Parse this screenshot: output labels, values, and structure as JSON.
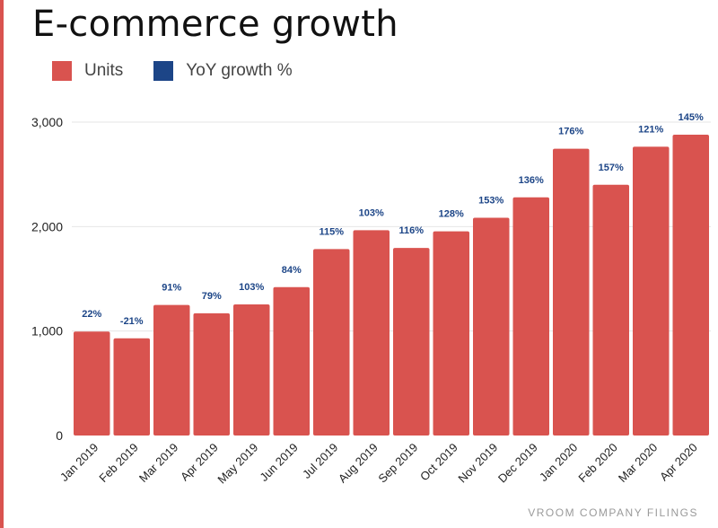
{
  "title": "E-commerce growth",
  "footer": "VROOM COMPANY FILINGS",
  "colors": {
    "units": "#d9534f",
    "growth": "#1c4587",
    "accent": "#d9534f"
  },
  "legend": [
    {
      "label": "Units",
      "color": "#d9534f"
    },
    {
      "label": "YoY growth %",
      "color": "#1c4587"
    }
  ],
  "chart_data": {
    "type": "bar",
    "title": "E-commerce growth",
    "categories": [
      "Jan 2019",
      "Feb 2019",
      "Mar 2019",
      "Apr 2019",
      "May 2019",
      "Jun 2019",
      "Jul 2019",
      "Aug 2019",
      "Sep 2019",
      "Oct 2019",
      "Nov 2019",
      "Dec 2019",
      "Jan 2020",
      "Feb 2020",
      "Mar 2020",
      "Apr 2020"
    ],
    "series": [
      {
        "name": "Units",
        "values": [
          995,
          930,
          1250,
          1170,
          1255,
          1420,
          1785,
          1965,
          1795,
          1955,
          2085,
          2280,
          2745,
          2400,
          2765,
          2880
        ]
      },
      {
        "name": "YoY growth %",
        "labels": [
          "22%",
          "-21%",
          "91%",
          "79%",
          "103%",
          "84%",
          "115%",
          "103%",
          "116%",
          "128%",
          "153%",
          "136%",
          "176%",
          "157%",
          "121%",
          "145%"
        ]
      }
    ],
    "yticks": [
      {
        "value": 0,
        "label": "0"
      },
      {
        "value": 1000,
        "label": "1,000"
      },
      {
        "value": 2000,
        "label": "2,000"
      },
      {
        "value": 3000,
        "label": "3,000"
      }
    ],
    "ylim": [
      0,
      3000
    ],
    "grid": true,
    "legend_position": "top-left"
  }
}
